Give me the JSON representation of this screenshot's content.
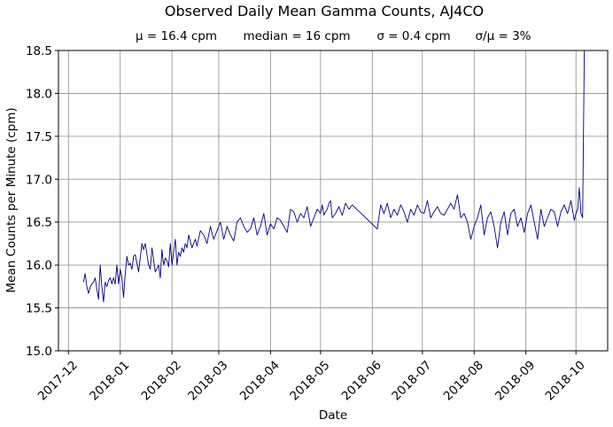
{
  "chart_data": {
    "type": "line",
    "title": "Observed Daily Mean Gamma Counts, AJ4CO",
    "subtitle_items": [
      "μ = 16.4 cpm",
      "median = 16 cpm",
      "σ = 0.4 cpm",
      "σ/μ = 3%"
    ],
    "xlabel": "Date",
    "ylabel": "Mean Counts per Minute (cpm)",
    "xlim": [
      "2017-11-25",
      "2018-10-20"
    ],
    "ylim": [
      15.0,
      18.5
    ],
    "x_ticks": [
      "2017-12-01",
      "2018-01-01",
      "2018-02-01",
      "2018-03-01",
      "2018-04-01",
      "2018-05-01",
      "2018-06-01",
      "2018-07-01",
      "2018-08-01",
      "2018-09-01",
      "2018-10-01"
    ],
    "x_tick_labels": [
      "2017-12",
      "2018-01",
      "2018-02",
      "2018-03",
      "2018-04",
      "2018-05",
      "2018-06",
      "2018-07",
      "2018-08",
      "2018-09",
      "2018-10"
    ],
    "y_ticks": [
      15.0,
      15.5,
      16.0,
      16.5,
      17.0,
      17.5,
      18.0,
      18.5
    ],
    "y_tick_labels": [
      "15.0",
      "15.5",
      "16.0",
      "16.5",
      "17.0",
      "17.5",
      "18.0",
      "18.5"
    ],
    "grid": true,
    "line_color": "#000080",
    "series": [
      {
        "x": [
          "2017-12-10",
          "2017-12-11",
          "2017-12-12",
          "2017-12-13",
          "2017-12-14",
          "2017-12-15",
          "2017-12-16",
          "2017-12-17",
          "2017-12-18",
          "2017-12-19",
          "2017-12-20",
          "2017-12-21",
          "2017-12-22",
          "2017-12-23",
          "2017-12-24",
          "2017-12-25",
          "2017-12-26",
          "2017-12-27",
          "2017-12-28",
          "2017-12-29",
          "2017-12-30",
          "2017-12-31",
          "2018-01-01",
          "2018-01-02",
          "2018-01-03",
          "2018-01-04",
          "2018-01-05",
          "2018-01-06",
          "2018-01-07",
          "2018-01-08",
          "2018-01-09",
          "2018-01-10",
          "2018-01-12",
          "2018-01-14",
          "2018-01-15",
          "2018-01-16",
          "2018-01-18",
          "2018-01-19",
          "2018-01-20",
          "2018-01-22",
          "2018-01-24",
          "2018-01-25",
          "2018-01-26",
          "2018-01-27",
          "2018-01-28",
          "2018-01-29",
          "2018-01-30",
          "2018-01-31",
          "2018-02-01",
          "2018-02-02",
          "2018-02-03",
          "2018-02-04",
          "2018-02-05",
          "2018-02-06",
          "2018-02-07",
          "2018-02-08",
          "2018-02-09",
          "2018-02-10",
          "2018-02-11",
          "2018-02-13",
          "2018-02-15",
          "2018-02-16",
          "2018-02-18",
          "2018-02-20",
          "2018-02-22",
          "2018-02-24",
          "2018-02-26",
          "2018-02-28",
          "2018-03-02",
          "2018-03-04",
          "2018-03-06",
          "2018-03-08",
          "2018-03-10",
          "2018-03-12",
          "2018-03-14",
          "2018-03-16",
          "2018-03-18",
          "2018-03-20",
          "2018-03-22",
          "2018-03-24",
          "2018-03-26",
          "2018-03-28",
          "2018-03-30",
          "2018-04-01",
          "2018-04-03",
          "2018-04-05",
          "2018-04-07",
          "2018-04-09",
          "2018-04-11",
          "2018-04-13",
          "2018-04-15",
          "2018-04-17",
          "2018-04-19",
          "2018-04-21",
          "2018-04-23",
          "2018-04-25",
          "2018-04-27",
          "2018-04-29",
          "2018-05-01",
          "2018-05-02",
          "2018-05-03",
          "2018-05-04",
          "2018-05-05",
          "2018-05-06",
          "2018-05-07",
          "2018-05-08",
          "2018-05-10",
          "2018-05-12",
          "2018-05-14",
          "2018-05-16",
          "2018-05-18",
          "2018-05-20",
          "2018-06-04",
          "2018-06-06",
          "2018-06-08",
          "2018-06-10",
          "2018-06-12",
          "2018-06-14",
          "2018-06-16",
          "2018-06-18",
          "2018-06-20",
          "2018-06-22",
          "2018-06-24",
          "2018-06-26",
          "2018-06-28",
          "2018-06-30",
          "2018-07-02",
          "2018-07-04",
          "2018-07-06",
          "2018-07-08",
          "2018-07-10",
          "2018-07-12",
          "2018-07-14",
          "2018-07-16",
          "2018-07-18",
          "2018-07-20",
          "2018-07-22",
          "2018-07-24",
          "2018-07-26",
          "2018-07-28",
          "2018-07-30",
          "2018-08-01",
          "2018-08-03",
          "2018-08-05",
          "2018-08-07",
          "2018-08-09",
          "2018-08-11",
          "2018-08-13",
          "2018-08-15",
          "2018-08-17",
          "2018-08-19",
          "2018-08-21",
          "2018-08-23",
          "2018-08-25",
          "2018-08-27",
          "2018-08-29",
          "2018-08-31",
          "2018-09-02",
          "2018-09-04",
          "2018-09-06",
          "2018-09-08",
          "2018-09-10",
          "2018-09-12",
          "2018-09-14",
          "2018-09-16",
          "2018-09-18",
          "2018-09-20",
          "2018-09-22",
          "2018-09-24",
          "2018-09-26",
          "2018-09-28",
          "2018-09-30",
          "2018-10-01",
          "2018-10-02",
          "2018-10-03",
          "2018-10-04",
          "2018-10-05",
          "2018-10-06"
        ],
        "y": [
          15.8,
          15.9,
          15.75,
          15.67,
          15.74,
          15.78,
          15.8,
          15.85,
          15.72,
          15.6,
          16.0,
          15.75,
          15.57,
          15.8,
          15.75,
          15.82,
          15.85,
          15.78,
          15.85,
          15.78,
          16.0,
          15.78,
          15.95,
          15.85,
          15.62,
          15.9,
          16.1,
          16.0,
          16.02,
          15.95,
          16.1,
          16.12,
          15.92,
          16.25,
          16.18,
          16.25,
          16.0,
          15.95,
          16.2,
          15.92,
          16.0,
          15.85,
          16.18,
          16.0,
          16.08,
          16.05,
          15.98,
          16.25,
          16.0,
          16.15,
          16.3,
          16.0,
          16.15,
          16.1,
          16.2,
          16.15,
          16.25,
          16.2,
          16.35,
          16.2,
          16.3,
          16.22,
          16.4,
          16.35,
          16.25,
          16.45,
          16.3,
          16.4,
          16.5,
          16.3,
          16.45,
          16.35,
          16.28,
          16.5,
          16.55,
          16.45,
          16.38,
          16.42,
          16.55,
          16.35,
          16.45,
          16.6,
          16.35,
          16.48,
          16.42,
          16.55,
          16.52,
          16.45,
          16.38,
          16.65,
          16.62,
          16.5,
          16.6,
          16.55,
          16.68,
          16.45,
          16.55,
          16.65,
          16.6,
          16.7,
          16.58,
          16.62,
          16.65,
          16.72,
          16.75,
          16.55,
          16.6,
          16.68,
          16.58,
          16.72,
          16.65,
          16.7,
          16.42,
          16.7,
          16.6,
          16.72,
          16.55,
          16.65,
          16.58,
          16.7,
          16.62,
          16.5,
          16.65,
          16.58,
          16.7,
          16.62,
          16.6,
          16.75,
          16.55,
          16.62,
          16.68,
          16.6,
          16.58,
          16.65,
          16.72,
          16.65,
          16.82,
          16.55,
          16.6,
          16.5,
          16.3,
          16.45,
          16.55,
          16.7,
          16.35,
          16.55,
          16.62,
          16.45,
          16.2,
          16.5,
          16.62,
          16.35,
          16.6,
          16.65,
          16.45,
          16.55,
          16.38,
          16.6,
          16.7,
          16.5,
          16.3,
          16.65,
          16.45,
          16.55,
          16.65,
          16.62,
          16.45,
          16.62,
          16.7,
          16.6,
          16.75,
          16.52,
          16.6,
          16.65,
          16.9,
          16.6,
          16.55,
          18.5
        ]
      }
    ]
  }
}
